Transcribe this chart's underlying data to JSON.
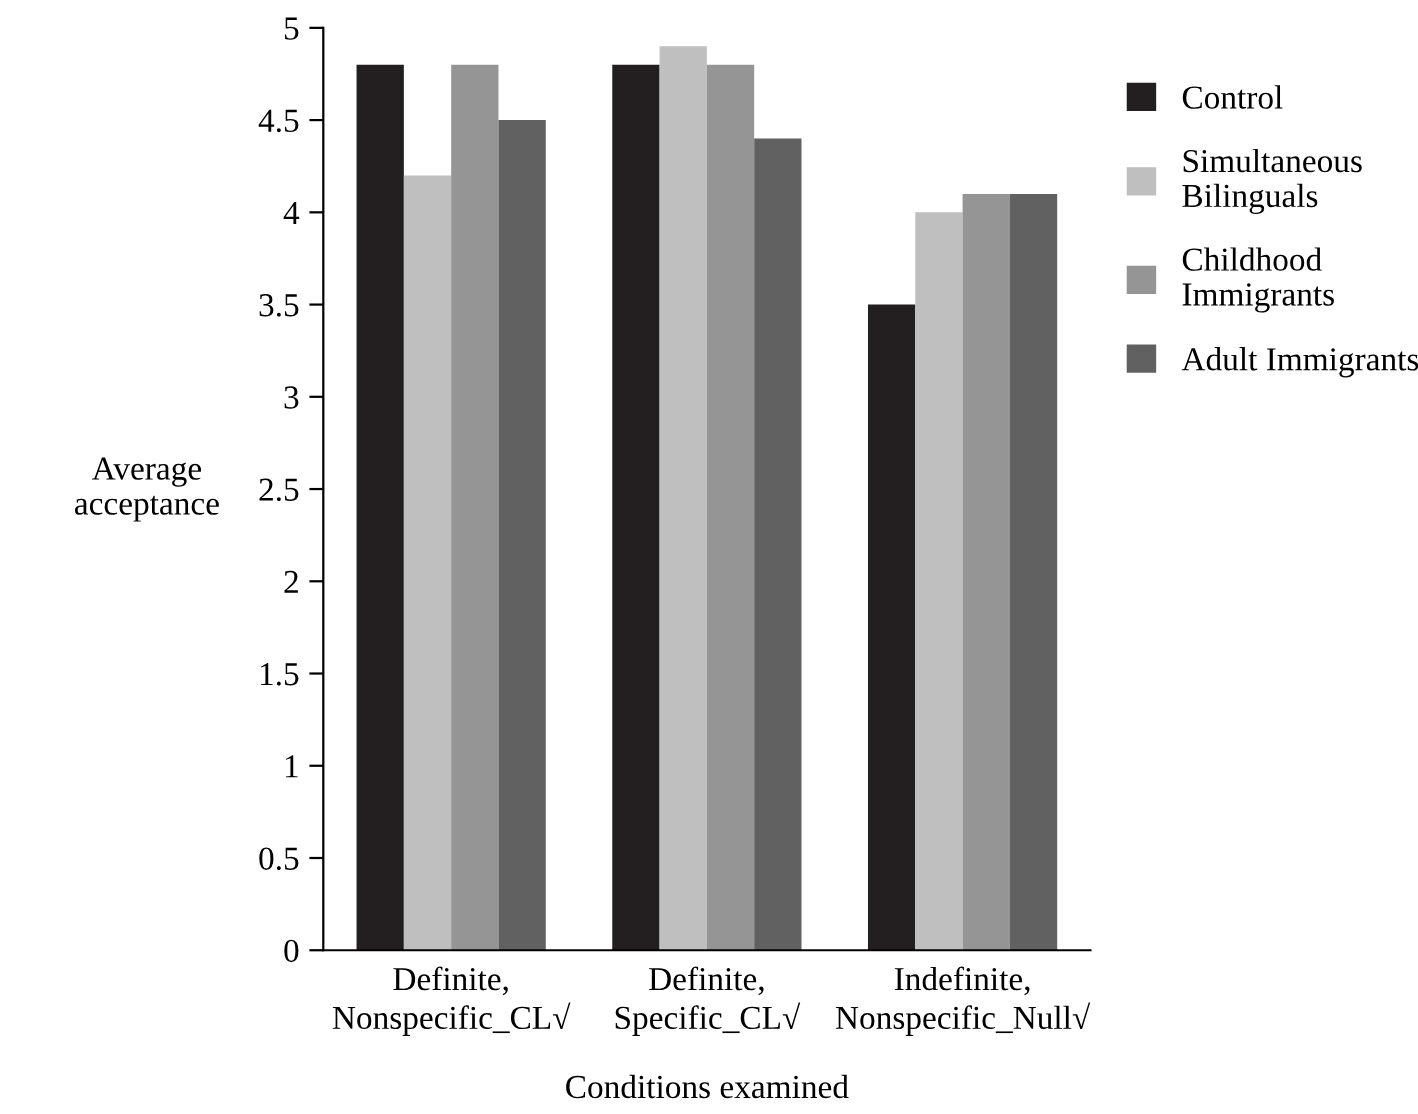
{
  "chart_data": {
    "type": "bar",
    "xlabel": "Conditions examined",
    "ylabel": "Average\nacceptance",
    "categories": [
      "Definite,\nNonspecific_CL√",
      "Definite,\nSpecific_CL√",
      "Indefinite,\nNonspecific_Null√"
    ],
    "series": [
      {
        "name": "Control",
        "color": "#231f20",
        "values": [
          4.8,
          4.8,
          3.5
        ]
      },
      {
        "name": "Simultaneous\nBilinguals",
        "color": "#bfbfbf",
        "values": [
          4.2,
          4.9,
          4.0
        ]
      },
      {
        "name": "Childhood\nImmigrants",
        "color": "#959595",
        "values": [
          4.8,
          4.8,
          4.1
        ]
      },
      {
        "name": "Adult Immigrants",
        "color": "#616161",
        "values": [
          4.5,
          4.4,
          4.1
        ]
      }
    ],
    "ylim": [
      0,
      5
    ],
    "yticks": [
      0,
      0.5,
      1,
      1.5,
      2,
      2.5,
      3,
      3.5,
      4,
      4.5,
      5
    ],
    "grid": false,
    "legend": "right"
  }
}
